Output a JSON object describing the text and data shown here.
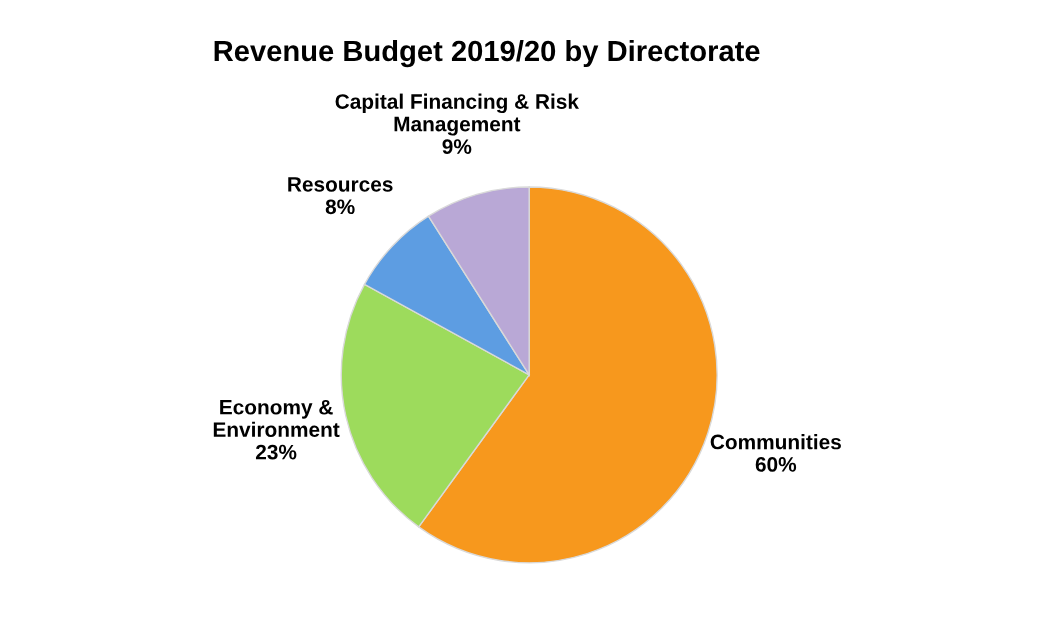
{
  "chart_data": {
    "type": "pie",
    "title": "Revenue Budget 2019/20 by Directorate",
    "categories": [
      "Communities",
      "Economy &\nEnvironment",
      "Resources",
      "Capital Financing & Risk\nManagement"
    ],
    "values": [
      60,
      23,
      8,
      9
    ],
    "value_labels": [
      "60%",
      "23%",
      "8%",
      "9%"
    ],
    "colors": [
      "#f7981d",
      "#9ddb5c",
      "#5d9de2",
      "#b9a8d6"
    ],
    "legend": false
  }
}
